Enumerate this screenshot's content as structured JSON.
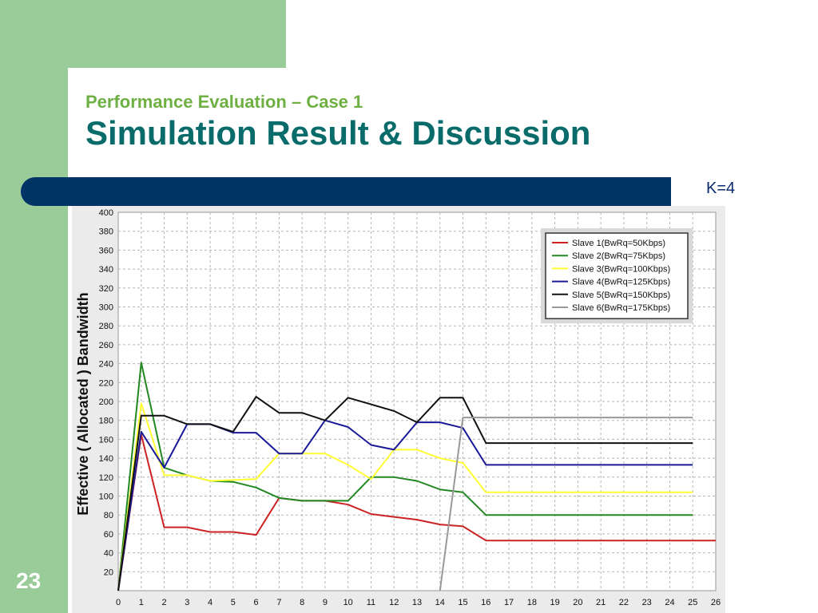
{
  "slide": {
    "subtitle": "Performance Evaluation – Case 1",
    "title": "Simulation Result & Discussion",
    "k_label": "K=4",
    "page_number": "23",
    "colors": {
      "green_panel": "#99cc99",
      "title_teal": "#0a6b6b",
      "subtitle_green": "#6fb043",
      "bar_navy": "#003366"
    }
  },
  "chart_data": {
    "type": "line",
    "title": "",
    "xlabel": "",
    "ylabel": "Effective ( Allocated ) Bandwidth",
    "xlim": [
      0,
      26
    ],
    "ylim": [
      0,
      400
    ],
    "xticks": [
      "0",
      "1",
      "2",
      "3",
      "4",
      "5",
      "6",
      "7",
      "8",
      "9",
      "10",
      "11",
      "12",
      "13",
      "14",
      "15",
      "16",
      "17",
      "18",
      "19",
      "20",
      "21",
      "22",
      "23",
      "24",
      "25",
      "26"
    ],
    "yticks": [
      "20",
      "40",
      "60",
      "80",
      "100",
      "120",
      "140",
      "160",
      "180",
      "200",
      "220",
      "240",
      "260",
      "280",
      "300",
      "320",
      "340",
      "360",
      "380",
      "400"
    ],
    "grid": true,
    "legend_position": "top-right",
    "series": [
      {
        "name": "Slave 1(BwRq=50Kbps)",
        "color": "#cc2222",
        "points": [
          [
            0,
            0
          ],
          [
            1,
            165
          ],
          [
            2,
            67
          ],
          [
            3,
            67
          ],
          [
            4,
            62
          ],
          [
            5,
            62
          ],
          [
            6,
            59
          ],
          [
            7,
            98
          ],
          [
            8,
            95
          ],
          [
            9,
            95
          ],
          [
            10,
            91
          ],
          [
            11,
            81
          ],
          [
            12,
            78
          ],
          [
            13,
            75
          ],
          [
            14,
            70
          ],
          [
            15,
            68
          ],
          [
            16,
            53
          ],
          [
            17,
            53
          ],
          [
            18,
            53
          ],
          [
            19,
            53
          ],
          [
            20,
            53
          ],
          [
            21,
            53
          ],
          [
            22,
            53
          ],
          [
            23,
            53
          ],
          [
            24,
            53
          ],
          [
            25,
            53
          ],
          [
            26,
            53
          ]
        ]
      },
      {
        "name": "Slave 2(BwRq=75Kbps)",
        "color": "#228822",
        "points": [
          [
            0,
            0
          ],
          [
            1,
            241
          ],
          [
            2,
            130
          ],
          [
            3,
            122
          ],
          [
            4,
            116
          ],
          [
            5,
            115
          ],
          [
            6,
            109
          ],
          [
            7,
            98
          ],
          [
            8,
            95
          ],
          [
            9,
            95
          ],
          [
            10,
            95
          ],
          [
            11,
            120
          ],
          [
            12,
            120
          ],
          [
            13,
            116
          ],
          [
            14,
            107
          ],
          [
            15,
            104
          ],
          [
            16,
            80
          ],
          [
            17,
            80
          ],
          [
            18,
            80
          ],
          [
            19,
            80
          ],
          [
            20,
            80
          ],
          [
            21,
            80
          ],
          [
            22,
            80
          ],
          [
            23,
            80
          ],
          [
            24,
            80
          ],
          [
            25,
            80
          ]
        ]
      },
      {
        "name": "Slave 3(BwRq=100Kbps)",
        "color": "#ffff33",
        "points": [
          [
            0,
            0
          ],
          [
            1,
            198
          ],
          [
            2,
            122
          ],
          [
            3,
            122
          ],
          [
            4,
            116
          ],
          [
            5,
            117
          ],
          [
            6,
            118
          ],
          [
            7,
            145
          ],
          [
            8,
            145
          ],
          [
            9,
            145
          ],
          [
            10,
            133
          ],
          [
            11,
            118
          ],
          [
            12,
            149
          ],
          [
            13,
            149
          ],
          [
            14,
            140
          ],
          [
            15,
            135
          ],
          [
            16,
            104
          ],
          [
            17,
            104
          ],
          [
            18,
            104
          ],
          [
            19,
            104
          ],
          [
            20,
            104
          ],
          [
            21,
            104
          ],
          [
            22,
            104
          ],
          [
            23,
            104
          ],
          [
            24,
            104
          ],
          [
            25,
            104
          ]
        ]
      },
      {
        "name": "Slave 4(BwRq=125Kbps)",
        "color": "#1a1a99",
        "points": [
          [
            0,
            0
          ],
          [
            1,
            168
          ],
          [
            2,
            130
          ],
          [
            3,
            176
          ],
          [
            4,
            176
          ],
          [
            5,
            167
          ],
          [
            6,
            167
          ],
          [
            7,
            145
          ],
          [
            8,
            145
          ],
          [
            9,
            180
          ],
          [
            10,
            173
          ],
          [
            11,
            154
          ],
          [
            12,
            149
          ],
          [
            13,
            178
          ],
          [
            14,
            178
          ],
          [
            15,
            172
          ],
          [
            16,
            133
          ],
          [
            17,
            133
          ],
          [
            18,
            133
          ],
          [
            19,
            133
          ],
          [
            20,
            133
          ],
          [
            21,
            133
          ],
          [
            22,
            133
          ],
          [
            23,
            133
          ],
          [
            24,
            133
          ],
          [
            25,
            133
          ]
        ]
      },
      {
        "name": "Slave 5(BwRq=150Kbps)",
        "color": "#111111",
        "points": [
          [
            0,
            0
          ],
          [
            1,
            185
          ],
          [
            2,
            185
          ],
          [
            3,
            176
          ],
          [
            4,
            176
          ],
          [
            5,
            168
          ],
          [
            6,
            205
          ],
          [
            7,
            188
          ],
          [
            8,
            188
          ],
          [
            9,
            180
          ],
          [
            10,
            204
          ],
          [
            11,
            197
          ],
          [
            12,
            190
          ],
          [
            13,
            178
          ],
          [
            14,
            204
          ],
          [
            15,
            204
          ],
          [
            16,
            156
          ],
          [
            17,
            156
          ],
          [
            18,
            156
          ],
          [
            19,
            156
          ],
          [
            20,
            156
          ],
          [
            21,
            156
          ],
          [
            22,
            156
          ],
          [
            23,
            156
          ],
          [
            24,
            156
          ],
          [
            25,
            156
          ]
        ]
      },
      {
        "name": "Slave 6(BwRq=175Kbps)",
        "color": "#999999",
        "points": [
          [
            14,
            0
          ],
          [
            15,
            183
          ],
          [
            16,
            183
          ],
          [
            17,
            183
          ],
          [
            18,
            183
          ],
          [
            19,
            183
          ],
          [
            20,
            183
          ],
          [
            21,
            183
          ],
          [
            22,
            183
          ],
          [
            23,
            183
          ],
          [
            24,
            183
          ],
          [
            25,
            183
          ]
        ]
      }
    ]
  }
}
